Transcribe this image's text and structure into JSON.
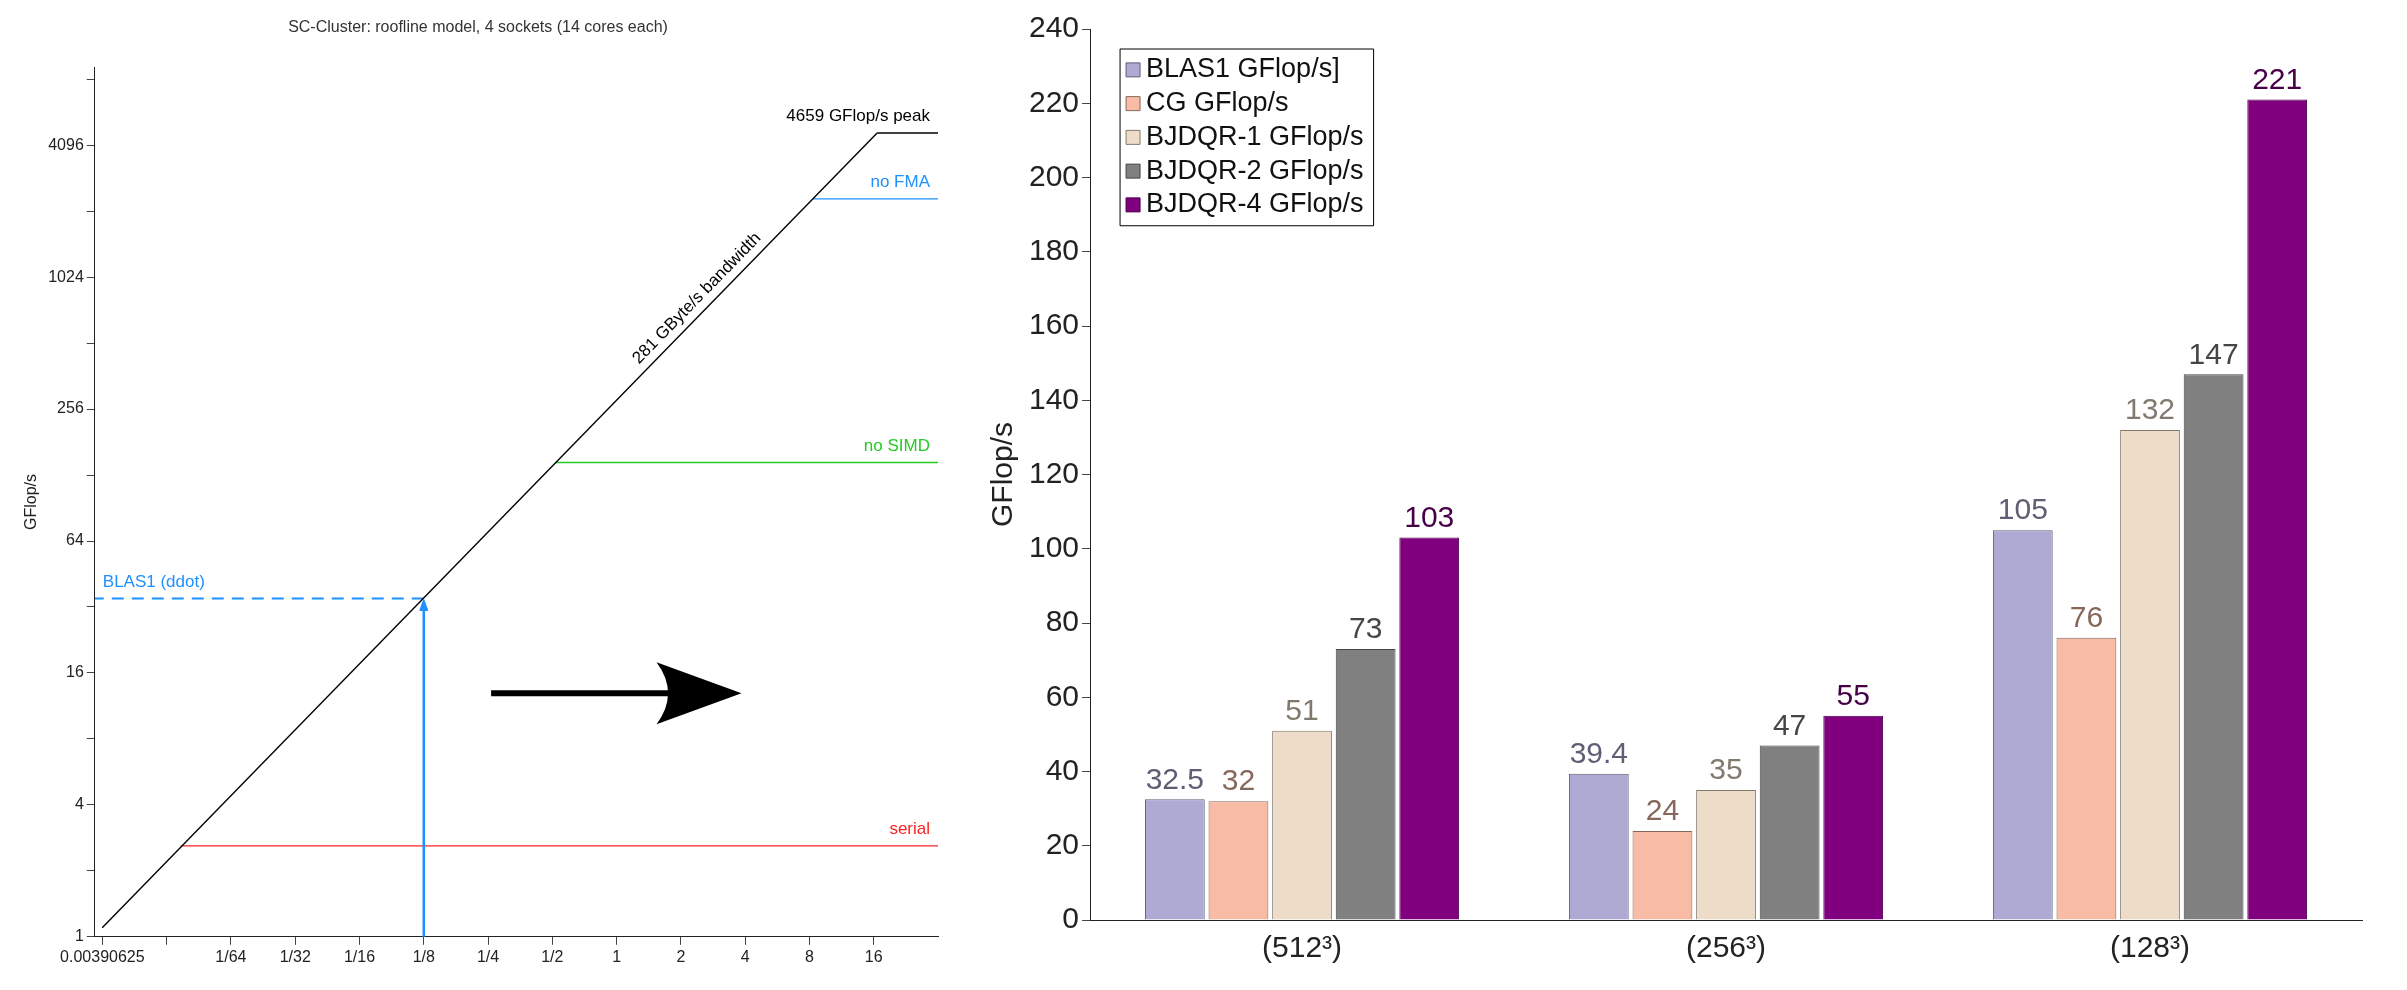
{
  "chart_data": [
    {
      "type": "line",
      "title": "SC-Cluster: roofline model, 4 sockets (14 cores each)",
      "ylabel": "GFlop/s",
      "log": "xy",
      "marker": "none",
      "grid": false,
      "legend": false,
      "xlim": [
        0.0036,
        32
      ],
      "xticks": [
        0.00390625,
        {
          "value": 0.0078125,
          "label": null
        },
        {
          "value": 0.015625,
          "label": "1/64"
        },
        {
          "value": 0.03125,
          "label": "1/32"
        },
        {
          "value": 0.0625,
          "label": "1/16"
        },
        {
          "value": 0.125,
          "label": "1/8"
        },
        {
          "value": 0.25,
          "label": "1/4"
        },
        {
          "value": 0.5,
          "label": "1/2"
        },
        1,
        2,
        4,
        8,
        16
      ],
      "ylim": [
        1,
        9300
      ],
      "yticks": [
        1,
        {
          "value": 2,
          "label": null
        },
        4,
        {
          "value": 8,
          "label": null
        },
        16,
        {
          "value": 32,
          "label": null
        },
        64,
        {
          "value": 128,
          "label": null
        },
        256,
        {
          "value": 512,
          "label": null
        },
        1024,
        {
          "value": 2048,
          "label": null
        },
        4096,
        {
          "value": 8192,
          "label": null
        }
      ],
      "series": [
        {
          "name": "281 GByte/s bandwidth",
          "color": "#000000",
          "x": [
            0.0039,
            16.6
          ],
          "values": [
            1.1,
            4659
          ]
        },
        {
          "name": "4659 GFlop/s peak",
          "color": "#000000",
          "x": [
            16.6,
            32
          ],
          "values": [
            4659,
            4659
          ]
        },
        {
          "name": "no FMA",
          "color": "#1e90ff",
          "x": [
            8.3,
            32
          ],
          "values": [
            2330,
            2330
          ]
        },
        {
          "name": "no SIMD",
          "color": "#22cc22",
          "x": [
            0.52,
            32
          ],
          "values": [
            146,
            146
          ]
        },
        {
          "name": "serial",
          "color": "#ff2222",
          "x": [
            0.0091,
            32
          ],
          "values": [
            2.6,
            2.6
          ]
        },
        {
          "name": "BLAS1 (ddot)",
          "color": "#1e90ff",
          "x": [
            0.125,
            0.0036
          ],
          "values": [
            35,
            35
          ],
          "line_style": "dashed"
        }
      ]
    },
    {
      "type": "bar",
      "ylabel": "GFlop/s",
      "categories": [
        "(512³)",
        "(256³)",
        "(128³)"
      ],
      "ylim": [
        0,
        240
      ],
      "yticks": [
        0,
        20,
        40,
        60,
        80,
        100,
        120,
        140,
        160,
        180,
        200,
        220,
        240
      ],
      "grid": false,
      "legend": "top left",
      "data_labels": true,
      "series": [
        {
          "name": "BLAS1 GFlop/s]",
          "color": "#aeaad4",
          "values": [
            32.5,
            39.4,
            105
          ]
        },
        {
          "name": "CG GFlop/s",
          "color": "#f8bca6",
          "values": [
            32,
            24,
            76
          ]
        },
        {
          "name": "BJDQR-1 GFlop/s",
          "color": "#ecdcc8",
          "values": [
            51,
            35,
            132
          ]
        },
        {
          "name": "BJDQR-2 GFlop/s",
          "color": "#808080",
          "values": [
            73,
            47,
            147
          ]
        },
        {
          "name": "BJDQR-4 GFlop/s",
          "color": "#800080",
          "values": [
            103,
            55,
            221
          ]
        }
      ]
    }
  ]
}
